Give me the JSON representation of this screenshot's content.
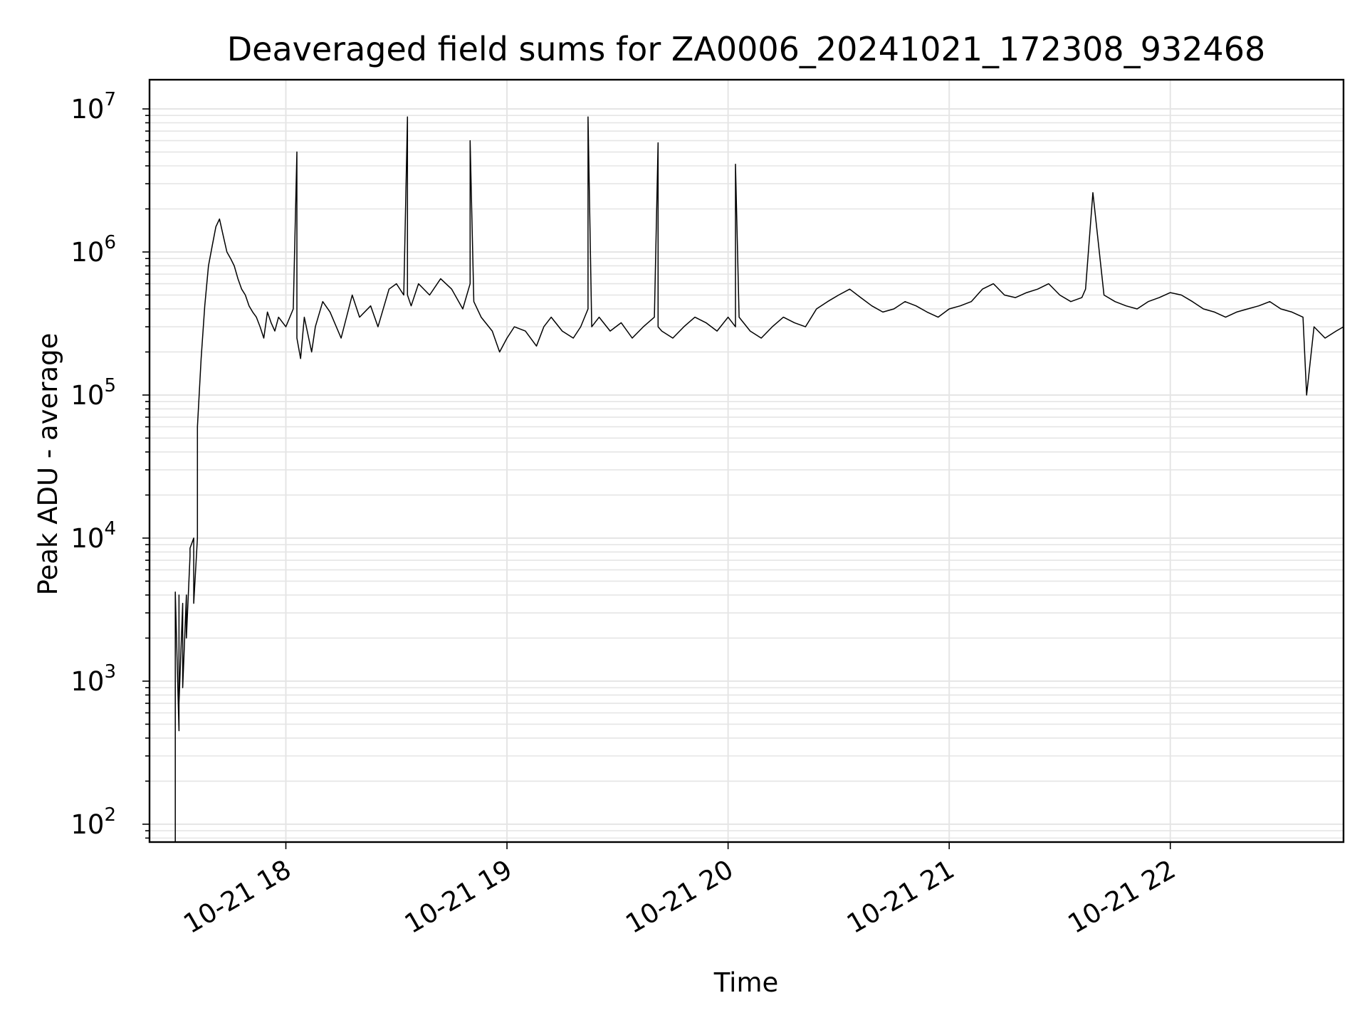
{
  "chart_data": {
    "type": "line",
    "title": "Deaveraged field sums for ZA0006_20241021_172308_932468",
    "xlabel": "Time",
    "ylabel": "Peak ADU - average",
    "yscale": "log",
    "ylim": [
      75,
      16000000
    ],
    "xlim": [
      "2024-10-21 17:23",
      "2024-10-21 22:47"
    ],
    "grid": true,
    "legend": "none",
    "line_color": "#000000",
    "grid_color": "#e5e5e5",
    "x_ticks": [
      {
        "label": "10-21 18",
        "time": "2024-10-21 18:00"
      },
      {
        "label": "10-21 19",
        "time": "2024-10-21 19:00"
      },
      {
        "label": "10-21 20",
        "time": "2024-10-21 20:00"
      },
      {
        "label": "10-21 21",
        "time": "2024-10-21 21:00"
      },
      {
        "label": "10-21 22",
        "time": "2024-10-21 22:00"
      }
    ],
    "y_ticks": [
      {
        "base": "10",
        "exp": "2",
        "value": 100
      },
      {
        "base": "10",
        "exp": "3",
        "value": 1000
      },
      {
        "base": "10",
        "exp": "4",
        "value": 10000
      },
      {
        "base": "10",
        "exp": "5",
        "value": 100000
      },
      {
        "base": "10",
        "exp": "6",
        "value": 1000000
      },
      {
        "base": "10",
        "exp": "7",
        "value": 10000000
      }
    ],
    "series": [
      {
        "x": [
          "2024-10-21 17:30",
          "2024-10-21 17:30",
          "2024-10-21 17:31",
          "2024-10-21 17:31",
          "2024-10-21 17:31",
          "2024-10-21 17:32",
          "2024-10-21 17:32",
          "2024-10-21 17:33",
          "2024-10-21 17:33",
          "2024-10-21 17:34",
          "2024-10-21 17:34",
          "2024-10-21 17:35",
          "2024-10-21 17:35",
          "2024-10-21 17:36",
          "2024-10-21 17:36",
          "2024-10-21 17:37",
          "2024-10-21 17:38",
          "2024-10-21 17:39",
          "2024-10-21 17:40",
          "2024-10-21 17:41",
          "2024-10-21 17:42",
          "2024-10-21 17:43",
          "2024-10-21 17:44",
          "2024-10-21 17:45",
          "2024-10-21 17:46",
          "2024-10-21 17:47",
          "2024-10-21 17:48",
          "2024-10-21 17:49",
          "2024-10-21 17:50",
          "2024-10-21 17:51",
          "2024-10-21 17:52",
          "2024-10-21 17:53",
          "2024-10-21 17:54",
          "2024-10-21 17:55",
          "2024-10-21 17:56",
          "2024-10-21 17:57",
          "2024-10-21 17:58",
          "2024-10-21 18:00",
          "2024-10-21 18:02",
          "2024-10-21 18:03",
          "2024-10-21 18:03",
          "2024-10-21 18:04",
          "2024-10-21 18:05",
          "2024-10-21 18:07",
          "2024-10-21 18:08",
          "2024-10-21 18:10",
          "2024-10-21 18:12",
          "2024-10-21 18:15",
          "2024-10-21 18:18",
          "2024-10-21 18:20",
          "2024-10-21 18:23",
          "2024-10-21 18:25",
          "2024-10-21 18:28",
          "2024-10-21 18:30",
          "2024-10-21 18:32",
          "2024-10-21 18:33",
          "2024-10-21 18:33",
          "2024-10-21 18:34",
          "2024-10-21 18:36",
          "2024-10-21 18:39",
          "2024-10-21 18:42",
          "2024-10-21 18:45",
          "2024-10-21 18:48",
          "2024-10-21 18:50",
          "2024-10-21 18:50",
          "2024-10-21 18:51",
          "2024-10-21 18:53",
          "2024-10-21 18:56",
          "2024-10-21 18:58",
          "2024-10-21 19:00",
          "2024-10-21 19:02",
          "2024-10-21 19:05",
          "2024-10-21 19:08",
          "2024-10-21 19:10",
          "2024-10-21 19:12",
          "2024-10-21 19:15",
          "2024-10-21 19:18",
          "2024-10-21 19:20",
          "2024-10-21 19:22",
          "2024-10-21 19:22",
          "2024-10-21 19:23",
          "2024-10-21 19:25",
          "2024-10-21 19:28",
          "2024-10-21 19:31",
          "2024-10-21 19:34",
          "2024-10-21 19:37",
          "2024-10-21 19:40",
          "2024-10-21 19:41",
          "2024-10-21 19:41",
          "2024-10-21 19:42",
          "2024-10-21 19:45",
          "2024-10-21 19:48",
          "2024-10-21 19:51",
          "2024-10-21 19:54",
          "2024-10-21 19:57",
          "2024-10-21 20:00",
          "2024-10-21 20:02",
          "2024-10-21 20:02",
          "2024-10-21 20:03",
          "2024-10-21 20:06",
          "2024-10-21 20:09",
          "2024-10-21 20:12",
          "2024-10-21 20:15",
          "2024-10-21 20:18",
          "2024-10-21 20:21",
          "2024-10-21 20:24",
          "2024-10-21 20:27",
          "2024-10-21 20:30",
          "2024-10-21 20:33",
          "2024-10-21 20:36",
          "2024-10-21 20:39",
          "2024-10-21 20:42",
          "2024-10-21 20:45",
          "2024-10-21 20:48",
          "2024-10-21 20:51",
          "2024-10-21 20:54",
          "2024-10-21 20:57",
          "2024-10-21 21:00",
          "2024-10-21 21:03",
          "2024-10-21 21:06",
          "2024-10-21 21:09",
          "2024-10-21 21:12",
          "2024-10-21 21:15",
          "2024-10-21 21:18",
          "2024-10-21 21:21",
          "2024-10-21 21:24",
          "2024-10-21 21:27",
          "2024-10-21 21:30",
          "2024-10-21 21:33",
          "2024-10-21 21:36",
          "2024-10-21 21:37",
          "2024-10-21 21:39",
          "2024-10-21 21:42",
          "2024-10-21 21:45",
          "2024-10-21 21:48",
          "2024-10-21 21:51",
          "2024-10-21 21:54",
          "2024-10-21 21:57",
          "2024-10-21 22:00",
          "2024-10-21 22:03",
          "2024-10-21 22:06",
          "2024-10-21 22:09",
          "2024-10-21 22:12",
          "2024-10-21 22:15",
          "2024-10-21 22:18",
          "2024-10-21 22:21",
          "2024-10-21 22:24",
          "2024-10-21 22:27",
          "2024-10-21 22:30",
          "2024-10-21 22:33",
          "2024-10-21 22:36",
          "2024-10-21 22:37",
          "2024-10-21 22:39",
          "2024-10-21 22:42",
          "2024-10-21 22:45",
          "2024-10-21 22:47"
        ],
        "y": [
          75,
          4200,
          450,
          4000,
          700,
          3500,
          900,
          4000,
          2000,
          7500,
          8500,
          10000,
          3500,
          10000,
          60000,
          180000,
          420000,
          800000,
          1100000,
          1500000,
          1700000,
          1300000,
          1000000,
          900000,
          800000,
          650000,
          550000,
          500000,
          420000,
          380000,
          350000,
          300000,
          250000,
          380000,
          320000,
          280000,
          350000,
          300000,
          400000,
          5000000,
          250000,
          180000,
          350000,
          200000,
          300000,
          450000,
          380000,
          250000,
          500000,
          350000,
          420000,
          300000,
          550000,
          600000,
          500000,
          8800000,
          500000,
          420000,
          600000,
          500000,
          650000,
          550000,
          400000,
          600000,
          6000000,
          450000,
          350000,
          280000,
          200000,
          250000,
          300000,
          280000,
          220000,
          300000,
          350000,
          280000,
          250000,
          300000,
          400000,
          8800000,
          300000,
          350000,
          280000,
          320000,
          250000,
          300000,
          350000,
          5800000,
          300000,
          280000,
          250000,
          300000,
          350000,
          320000,
          280000,
          350000,
          300000,
          4100000,
          350000,
          280000,
          250000,
          300000,
          350000,
          320000,
          300000,
          400000,
          450000,
          500000,
          550000,
          480000,
          420000,
          380000,
          400000,
          450000,
          420000,
          380000,
          350000,
          400000,
          420000,
          450000,
          550000,
          600000,
          500000,
          480000,
          520000,
          550000,
          600000,
          500000,
          450000,
          480000,
          550000,
          2600000,
          500000,
          450000,
          420000,
          400000,
          450000,
          480000,
          520000,
          500000,
          450000,
          400000,
          380000,
          350000,
          380000,
          400000,
          420000,
          450000,
          400000,
          380000,
          350000,
          100000,
          300000,
          250000,
          280000,
          300000
        ]
      }
    ]
  }
}
